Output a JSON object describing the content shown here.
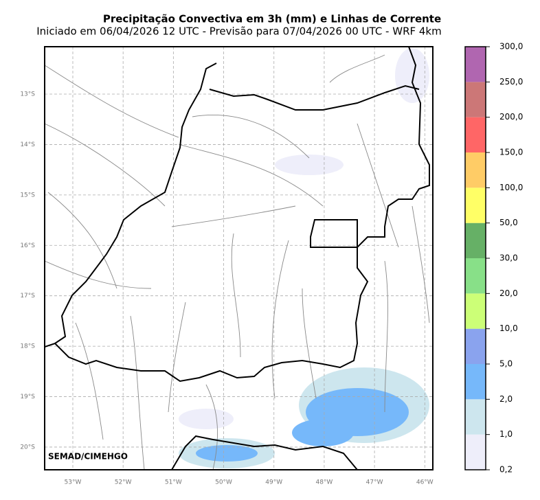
{
  "title": "Precipitação Convectiva em 3h (mm) e Linhas de Corrente",
  "subtitle": "Iniciado em 06/04/2026 12 UTC - Previsão para 07/04/2026 00 UTC - WRF 4km",
  "map": {
    "xlim": [
      -53.56,
      -45.84
    ],
    "ylim": [
      -20.45,
      -12.06
    ],
    "xticks": [
      {
        "value": -53,
        "label": "53°W"
      },
      {
        "value": -52,
        "label": "52°W"
      },
      {
        "value": -51,
        "label": "51°W"
      },
      {
        "value": -50,
        "label": "50°W"
      },
      {
        "value": -49,
        "label": "49°W"
      },
      {
        "value": -48,
        "label": "48°W"
      },
      {
        "value": -47,
        "label": "47°W"
      },
      {
        "value": -46,
        "label": "46°W"
      }
    ],
    "yticks": [
      {
        "value": -13,
        "label": "13°S"
      },
      {
        "value": -14,
        "label": "14°S"
      },
      {
        "value": -15,
        "label": "15°S"
      },
      {
        "value": -16,
        "label": "16°S"
      },
      {
        "value": -17,
        "label": "17°S"
      },
      {
        "value": -18,
        "label": "18°S"
      },
      {
        "value": -19,
        "label": "19°S"
      },
      {
        "value": -20,
        "label": "20°S"
      }
    ],
    "grid": true,
    "credit": "SEMAD/CIMEHGO"
  },
  "colorbar": {
    "levels": [
      {
        "value": 0.2,
        "label": "0,2"
      },
      {
        "value": 1,
        "label": "1,0"
      },
      {
        "value": 2,
        "label": "2,0"
      },
      {
        "value": 5,
        "label": "5,0"
      },
      {
        "value": 10,
        "label": "10,0"
      },
      {
        "value": 20,
        "label": "20,0"
      },
      {
        "value": 30,
        "label": "30,0"
      },
      {
        "value": 50,
        "label": "50,0"
      },
      {
        "value": 100,
        "label": "100,0"
      },
      {
        "value": 150,
        "label": "150,0"
      },
      {
        "value": 200,
        "label": "200,0"
      },
      {
        "value": 250,
        "label": "250,0"
      },
      {
        "value": 300,
        "label": "300,0"
      }
    ],
    "colors": [
      "#eeeefa",
      "#cde6ee",
      "#76b8fa",
      "#8aa3ee",
      "#ccff77",
      "#88e088",
      "#66b066",
      "#ffff66",
      "#ffcc66",
      "#ff6666",
      "#cc7777",
      "#b066b0"
    ]
  }
}
